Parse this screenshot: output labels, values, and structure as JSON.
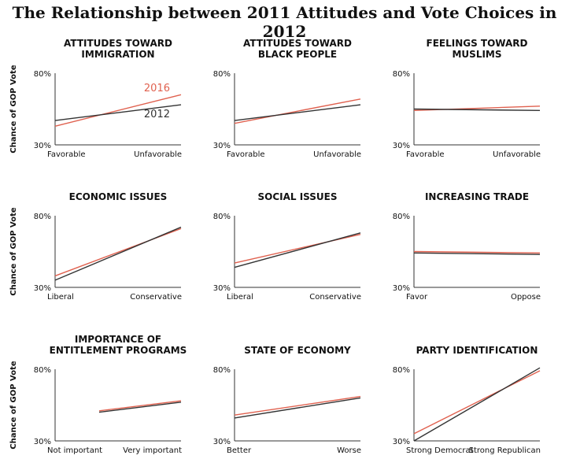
{
  "title": "The Relationship between 2011 Attitudes and Vote Choices in 2012",
  "chart_data": {
    "type": "line",
    "ylabel": "Chance of GOP Vote",
    "ylim": [
      30,
      80
    ],
    "yticks": [
      "80%",
      "30%"
    ],
    "series_styles": [
      {
        "name": "2016",
        "color": "#e0614f"
      },
      {
        "name": "2012",
        "color": "#333333"
      }
    ],
    "panels": [
      {
        "title": [
          "ATTITUDES TOWARD",
          "IMMIGRATION"
        ],
        "xlabels": [
          "Favorable",
          "Unfavorable"
        ],
        "show_legend": true,
        "series": [
          {
            "name": "2016",
            "values": [
              43,
              65
            ]
          },
          {
            "name": "2012",
            "values": [
              47,
              58
            ]
          }
        ]
      },
      {
        "title": [
          "ATTITUDES TOWARD",
          "BLACK PEOPLE"
        ],
        "xlabels": [
          "Favorable",
          "Unfavorable"
        ],
        "show_legend": false,
        "series": [
          {
            "name": "2016",
            "values": [
              45,
              62
            ]
          },
          {
            "name": "2012",
            "values": [
              47,
              58
            ]
          }
        ]
      },
      {
        "title": [
          "FEELINGS TOWARD",
          "MUSLIMS"
        ],
        "xlabels": [
          "Favorable",
          "Unfavorable"
        ],
        "show_legend": false,
        "series": [
          {
            "name": "2016",
            "values": [
              54,
              57
            ]
          },
          {
            "name": "2012",
            "values": [
              55,
              54
            ]
          }
        ]
      },
      {
        "title": [
          "ECONOMIC ISSUES"
        ],
        "xlabels": [
          "Liberal",
          "Conservative"
        ],
        "show_legend": false,
        "series": [
          {
            "name": "2016",
            "values": [
              38,
              71
            ]
          },
          {
            "name": "2012",
            "values": [
              35,
              72
            ]
          }
        ]
      },
      {
        "title": [
          "SOCIAL ISSUES"
        ],
        "xlabels": [
          "Liberal",
          "Conservative"
        ],
        "show_legend": false,
        "series": [
          {
            "name": "2016",
            "values": [
              47,
              67
            ]
          },
          {
            "name": "2012",
            "values": [
              44,
              68
            ]
          }
        ]
      },
      {
        "title": [
          "INCREASING TRADE"
        ],
        "xlabels": [
          "Favor",
          "Oppose"
        ],
        "show_legend": false,
        "series": [
          {
            "name": "2016",
            "values": [
              55,
              54
            ]
          },
          {
            "name": "2012",
            "values": [
              54,
              53
            ]
          }
        ]
      },
      {
        "title": [
          "IMPORTANCE OF",
          "ENTITLEMENT PROGRAMS"
        ],
        "xlabels": [
          "Not important",
          "Very important"
        ],
        "show_legend": false,
        "x_start": 0.35,
        "series": [
          {
            "name": "2016",
            "values": [
              51,
              58
            ]
          },
          {
            "name": "2012",
            "values": [
              50,
              57
            ]
          }
        ]
      },
      {
        "title": [
          "STATE OF ECONOMY"
        ],
        "xlabels": [
          "Better",
          "Worse"
        ],
        "show_legend": false,
        "series": [
          {
            "name": "2016",
            "values": [
              48,
              61
            ]
          },
          {
            "name": "2012",
            "values": [
              46,
              60
            ]
          }
        ]
      },
      {
        "title": [
          "PARTY IDENTIFICATION"
        ],
        "xlabels": [
          "Strong Democrat",
          "Strong Republican"
        ],
        "show_legend": false,
        "series": [
          {
            "name": "2016",
            "values": [
              35,
              79
            ]
          },
          {
            "name": "2012",
            "values": [
              30,
              81
            ]
          }
        ]
      }
    ]
  }
}
